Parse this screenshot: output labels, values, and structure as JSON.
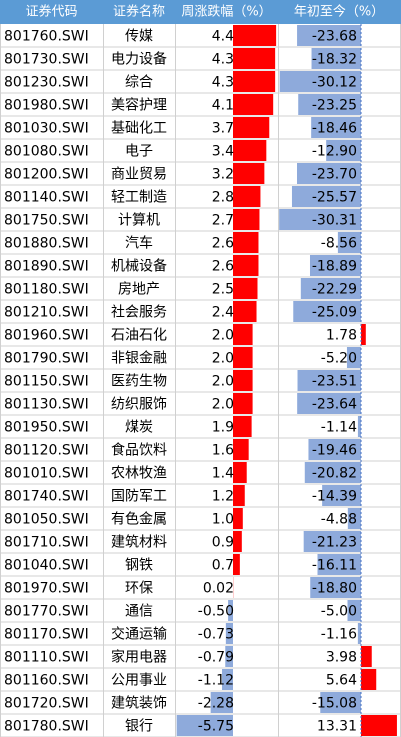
{
  "table": {
    "header": [
      "证券代码",
      "证券名称",
      "周涨跌幅（%）",
      "年初至今（%）"
    ],
    "rows": [
      [
        "801760.SWI",
        "传媒",
        "4.4",
        "-23.68"
      ],
      [
        "801730.SWI",
        "电力设备",
        "4.3",
        "-18.32"
      ],
      [
        "801230.SWI",
        "综合",
        "4.3",
        "-30.12"
      ],
      [
        "801980.SWI",
        "美容护理",
        "4.1",
        "-23.25"
      ],
      [
        "801030.SWI",
        "基础化工",
        "3.7",
        "-18.46"
      ],
      [
        "801080.SWI",
        "电子",
        "3.4",
        "-12.90"
      ],
      [
        "801200.SWI",
        "商业贸易",
        "3.2",
        "-23.70"
      ],
      [
        "801140.SWI",
        "轻工制造",
        "2.8",
        "-25.57"
      ],
      [
        "801750.SWI",
        "计算机",
        "2.7",
        "-30.31"
      ],
      [
        "801880.SWI",
        "汽车",
        "2.6",
        "-8.56"
      ],
      [
        "801890.SWI",
        "机械设备",
        "2.6",
        "-18.89"
      ],
      [
        "801180.SWI",
        "房地产",
        "2.5",
        "-22.29"
      ],
      [
        "801210.SWI",
        "社会服务",
        "2.4",
        "-25.09"
      ],
      [
        "801960.SWI",
        "石油石化",
        "2.0",
        "1.78"
      ],
      [
        "801790.SWI",
        "非银金融",
        "2.0",
        "-5.20"
      ],
      [
        "801150.SWI",
        "医药生物",
        "2.0",
        "-23.51"
      ],
      [
        "801130.SWI",
        "纺织服饰",
        "2.0",
        "-23.64"
      ],
      [
        "801950.SWI",
        "煤炭",
        "1.9",
        "-1.14"
      ],
      [
        "801120.SWI",
        "食品饮料",
        "1.6",
        "-19.46"
      ],
      [
        "801010.SWI",
        "农林牧渔",
        "1.4",
        "-20.82"
      ],
      [
        "801740.SWI",
        "国防军工",
        "1.2",
        "-14.39"
      ],
      [
        "801050.SWI",
        "有色金属",
        "1.0",
        "-4.88"
      ],
      [
        "801710.SWI",
        "建筑材料",
        "0.9",
        "-21.23"
      ],
      [
        "801040.SWI",
        "钢铁",
        "0.7",
        "-16.11"
      ],
      [
        "801970.SWI",
        "环保",
        "0.02",
        "-18.80"
      ],
      [
        "801770.SWI",
        "通信",
        "-0.50",
        "-5.00"
      ],
      [
        "801170.SWI",
        "交通运输",
        "-0.73",
        "-1.16"
      ],
      [
        "801110.SWI",
        "家用电器",
        "-0.79",
        "3.98"
      ],
      [
        "801160.SWI",
        "公用事业",
        "-1.12",
        "5.64"
      ],
      [
        "801720.SWI",
        "建筑装饰",
        "-2.28",
        "-15.08"
      ],
      [
        "801780.SWI",
        "银行",
        "-5.75",
        "13.31"
      ]
    ]
  }
}
